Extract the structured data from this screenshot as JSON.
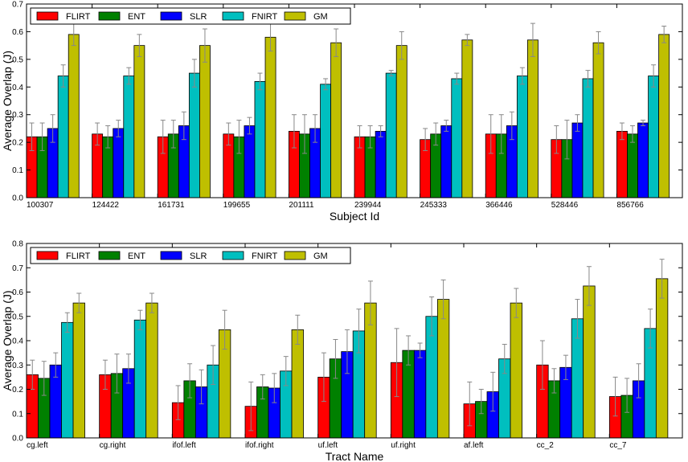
{
  "colors": {
    "FLIRT": "#ff0000",
    "ENT": "#008000",
    "SLR": "#0000ff",
    "FNIRT": "#00bfbf",
    "GM": "#bfbf00",
    "error": "#888888",
    "axis": "#000000"
  },
  "chart_data": [
    {
      "type": "bar",
      "title": "",
      "xlabel": "Subject Id",
      "ylabel": "Average Overlap (J)",
      "ylim": [
        0.0,
        0.7
      ],
      "yticks": [
        "0.0",
        "0.1",
        "0.2",
        "0.3",
        "0.4",
        "0.5",
        "0.6",
        "0.7"
      ],
      "legend_position": "top-left",
      "categories": [
        "100307",
        "124422",
        "161731",
        "199655",
        "201111",
        "239944",
        "245333",
        "366446",
        "528446",
        "856766"
      ],
      "series": [
        {
          "name": "FLIRT",
          "values": [
            0.22,
            0.23,
            0.22,
            0.23,
            0.24,
            0.22,
            0.21,
            0.23,
            0.21,
            0.24
          ],
          "errors": [
            0.05,
            0.04,
            0.06,
            0.04,
            0.06,
            0.04,
            0.04,
            0.07,
            0.05,
            0.03
          ]
        },
        {
          "name": "ENT",
          "values": [
            0.22,
            0.22,
            0.23,
            0.22,
            0.23,
            0.22,
            0.23,
            0.23,
            0.21,
            0.23
          ],
          "errors": [
            0.05,
            0.04,
            0.05,
            0.06,
            0.07,
            0.04,
            0.04,
            0.07,
            0.07,
            0.03
          ]
        },
        {
          "name": "SLR",
          "values": [
            0.25,
            0.25,
            0.26,
            0.26,
            0.25,
            0.24,
            0.26,
            0.26,
            0.27,
            0.27
          ],
          "errors": [
            0.05,
            0.03,
            0.05,
            0.03,
            0.05,
            0.02,
            0.02,
            0.05,
            0.03,
            0.01
          ]
        },
        {
          "name": "FNIRT",
          "values": [
            0.44,
            0.44,
            0.45,
            0.42,
            0.41,
            0.45,
            0.43,
            0.44,
            0.43,
            0.44
          ],
          "errors": [
            0.04,
            0.03,
            0.05,
            0.03,
            0.02,
            0.01,
            0.02,
            0.03,
            0.03,
            0.04
          ]
        },
        {
          "name": "GM",
          "values": [
            0.59,
            0.55,
            0.55,
            0.58,
            0.56,
            0.55,
            0.57,
            0.57,
            0.56,
            0.59
          ],
          "errors": [
            0.04,
            0.04,
            0.06,
            0.05,
            0.05,
            0.05,
            0.02,
            0.06,
            0.04,
            0.03
          ]
        }
      ]
    },
    {
      "type": "bar",
      "title": "",
      "xlabel": "Tract Name",
      "ylabel": "Average Overlap (J)",
      "ylim": [
        0.0,
        0.8
      ],
      "yticks": [
        "0.0",
        "0.1",
        "0.2",
        "0.3",
        "0.4",
        "0.5",
        "0.6",
        "0.7",
        "0.8"
      ],
      "legend_position": "top-left",
      "categories": [
        "cg.left",
        "cg.right",
        "ifof.left",
        "ifof.right",
        "uf.left",
        "uf.right",
        "af.left",
        "cc_2",
        "cc_7"
      ],
      "series": [
        {
          "name": "FLIRT",
          "values": [
            0.26,
            0.26,
            0.145,
            0.13,
            0.25,
            0.31,
            0.14,
            0.3,
            0.17
          ],
          "errors": [
            0.06,
            0.06,
            0.07,
            0.1,
            0.1,
            0.14,
            0.09,
            0.1,
            0.08
          ]
        },
        {
          "name": "ENT",
          "values": [
            0.245,
            0.265,
            0.235,
            0.21,
            0.325,
            0.36,
            0.15,
            0.235,
            0.175
          ],
          "errors": [
            0.07,
            0.08,
            0.07,
            0.05,
            0.08,
            0.06,
            0.05,
            0.05,
            0.07
          ]
        },
        {
          "name": "SLR",
          "values": [
            0.3,
            0.285,
            0.21,
            0.205,
            0.355,
            0.36,
            0.19,
            0.29,
            0.235
          ],
          "errors": [
            0.05,
            0.06,
            0.07,
            0.06,
            0.09,
            0.03,
            0.08,
            0.05,
            0.07
          ]
        },
        {
          "name": "FNIRT",
          "values": [
            0.475,
            0.485,
            0.3,
            0.275,
            0.44,
            0.5,
            0.325,
            0.49,
            0.45
          ],
          "errors": [
            0.04,
            0.04,
            0.08,
            0.06,
            0.09,
            0.08,
            0.06,
            0.08,
            0.08
          ]
        },
        {
          "name": "GM",
          "values": [
            0.555,
            0.555,
            0.445,
            0.445,
            0.555,
            0.57,
            0.555,
            0.625,
            0.655
          ],
          "errors": [
            0.04,
            0.04,
            0.08,
            0.06,
            0.09,
            0.08,
            0.06,
            0.08,
            0.08
          ]
        }
      ]
    }
  ]
}
